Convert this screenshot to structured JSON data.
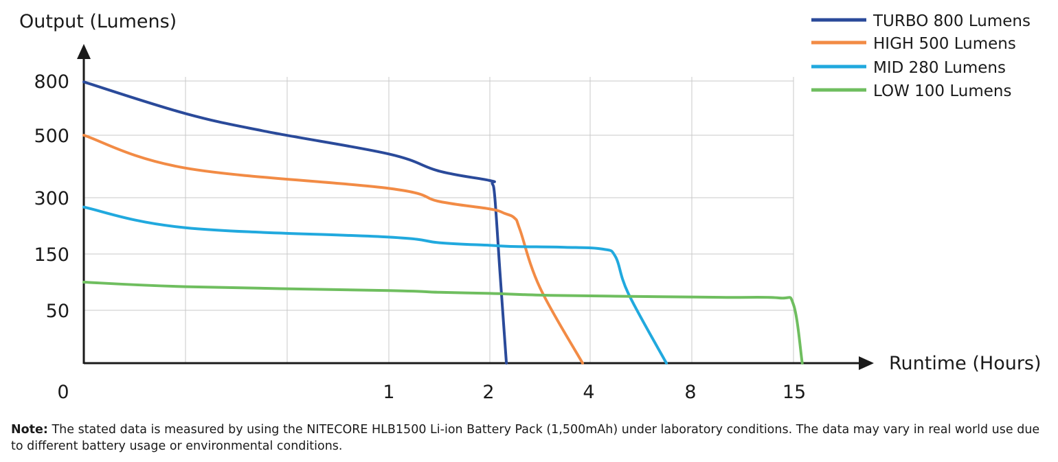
{
  "chart_data": {
    "type": "line",
    "title": "",
    "ylabel": "Output (Lumens)",
    "xlabel": "Runtime (Hours)",
    "origin_label": "0",
    "y_ticks": [
      "800",
      "500",
      "300",
      "150",
      "50"
    ],
    "x_ticks": [
      "1",
      "2",
      "4",
      "8",
      "15"
    ],
    "grid": true,
    "legend_position": "top-right",
    "series": [
      {
        "name": "TURBO 800 Lumens",
        "color": "#2a4a9a",
        "points": [
          [
            0,
            795
          ],
          [
            0.5,
            620
          ],
          [
            0.7,
            520
          ],
          [
            1,
            440
          ],
          [
            1.5,
            385
          ],
          [
            2,
            355
          ],
          [
            2.05,
            345
          ],
          [
            2.1,
            300
          ],
          [
            2.2,
            120
          ],
          [
            2.33,
            0
          ]
        ]
      },
      {
        "name": "HIGH 500 Lumens",
        "color": "#f28b45",
        "points": [
          [
            0,
            500
          ],
          [
            0.5,
            395
          ],
          [
            1,
            330
          ],
          [
            1.5,
            290
          ],
          [
            2,
            270
          ],
          [
            2.3,
            258
          ],
          [
            2.5,
            245
          ],
          [
            2.6,
            215
          ],
          [
            3,
            90
          ],
          [
            3.85,
            0
          ]
        ]
      },
      {
        "name": "MID 280 Lumens",
        "color": "#21a9de",
        "points": [
          [
            0,
            275
          ],
          [
            0.5,
            220
          ],
          [
            1,
            195
          ],
          [
            1.5,
            180
          ],
          [
            2,
            173
          ],
          [
            2.5,
            170
          ],
          [
            3.5,
            168
          ],
          [
            4.5,
            163
          ],
          [
            5,
            145
          ],
          [
            5.5,
            80
          ],
          [
            7,
            0
          ]
        ]
      },
      {
        "name": "LOW 100 Lumens",
        "color": "#6fbe5f",
        "points": [
          [
            0,
            100
          ],
          [
            0.5,
            92
          ],
          [
            1,
            85
          ],
          [
            1.5,
            82
          ],
          [
            2,
            80
          ],
          [
            3,
            77
          ],
          [
            5,
            75
          ],
          [
            10,
            73
          ],
          [
            14,
            72
          ],
          [
            15,
            60
          ],
          [
            15.6,
            0
          ]
        ]
      }
    ]
  },
  "note": {
    "label": "Note:",
    "text": " The stated data is measured by using the NITECORE HLB1500 Li-ion Battery Pack (1,500mAh) under laboratory conditions. The data may vary in real world use due to different battery usage or environmental conditions."
  }
}
